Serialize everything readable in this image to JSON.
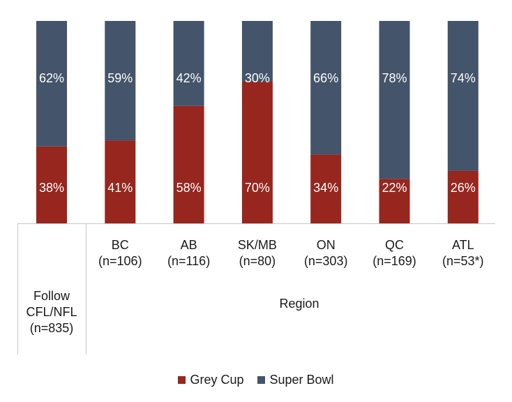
{
  "chart_data": {
    "type": "bar",
    "stacked": true,
    "percent_stacked": true,
    "categories": [
      {
        "lines": [
          "Follow",
          "CFL/NFL",
          "(n=835)"
        ]
      },
      {
        "lines": [
          "BC",
          "(n=106)"
        ]
      },
      {
        "lines": [
          "AB",
          "(n=116)"
        ]
      },
      {
        "lines": [
          "SK/MB",
          "(n=80)"
        ]
      },
      {
        "lines": [
          "ON",
          "(n=303)"
        ]
      },
      {
        "lines": [
          "QC",
          "(n=169)"
        ]
      },
      {
        "lines": [
          "ATL",
          "(n=53*)"
        ]
      }
    ],
    "group_label": "Region",
    "series": [
      {
        "name": "Grey Cup",
        "color": "#96261e",
        "values": [
          38,
          41,
          58,
          70,
          34,
          22,
          26
        ],
        "labels": [
          "38%",
          "41%",
          "58%",
          "70%",
          "34%",
          "22%",
          "26%"
        ]
      },
      {
        "name": "Super Bowl",
        "color": "#44546a",
        "values": [
          62,
          59,
          42,
          30,
          66,
          78,
          74
        ],
        "labels": [
          "62%",
          "59%",
          "42%",
          "30%",
          "66%",
          "78%",
          "74%"
        ]
      }
    ],
    "ylim": [
      0,
      100
    ],
    "grid": false,
    "legend_position": "bottom"
  }
}
